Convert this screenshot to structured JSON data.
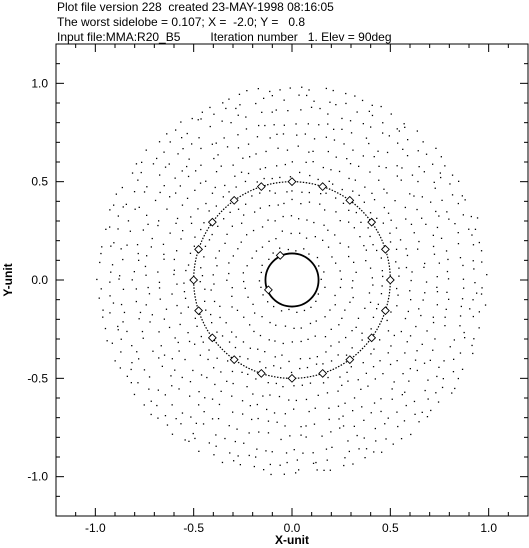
{
  "header": {
    "line1": "Plot file version 228  created 23-MAY-1998 08:16:05",
    "line2": "The worst sidelobe = 0.107; X =  -2.0; Y =   0.8",
    "line3": "Input file:MMA:R20_B5         Iteration number   1. Elev = 90deg"
  },
  "chart_data": {
    "type": "scatter",
    "xlabel": "X-unit",
    "ylabel": "Y-unit",
    "xlim": [
      -1.2,
      1.2
    ],
    "ylim": [
      -1.2,
      1.2
    ],
    "x_ticks": [
      -1.0,
      -0.5,
      0.0,
      0.5,
      1.0
    ],
    "x_tick_labels": [
      "-1.0",
      "-0.5",
      "0.0",
      "0.5",
      "1.0"
    ],
    "y_ticks": [
      -1.0,
      -0.5,
      0.0,
      0.5,
      1.0
    ],
    "y_tick_labels": [
      "-1.0",
      "-0.5",
      "0.0",
      "0.5",
      "1.0"
    ],
    "grid": false,
    "inner_circle": {
      "cx": 0.0,
      "cy": 0.0,
      "r": 0.135
    },
    "outer_ring": {
      "cx": 0.0,
      "cy": 0.0,
      "r": 0.5
    },
    "antennas": [
      {
        "x": 0.0,
        "y": 0.5
      },
      {
        "x": 0.156,
        "y": 0.475
      },
      {
        "x": 0.294,
        "y": 0.405
      },
      {
        "x": 0.405,
        "y": 0.294
      },
      {
        "x": 0.475,
        "y": 0.156
      },
      {
        "x": 0.5,
        "y": 0.0
      },
      {
        "x": 0.475,
        "y": -0.156
      },
      {
        "x": 0.405,
        "y": -0.294
      },
      {
        "x": 0.294,
        "y": -0.405
      },
      {
        "x": 0.156,
        "y": -0.475
      },
      {
        "x": 0.0,
        "y": -0.5
      },
      {
        "x": -0.156,
        "y": -0.475
      },
      {
        "x": -0.294,
        "y": -0.405
      },
      {
        "x": -0.405,
        "y": -0.294
      },
      {
        "x": -0.475,
        "y": -0.156
      },
      {
        "x": -0.5,
        "y": 0.0
      },
      {
        "x": -0.475,
        "y": 0.156
      },
      {
        "x": -0.405,
        "y": 0.294
      },
      {
        "x": -0.294,
        "y": 0.405
      },
      {
        "x": -0.156,
        "y": 0.475
      },
      {
        "x": -0.06,
        "y": 0.125
      },
      {
        "x": -0.12,
        "y": -0.05
      }
    ],
    "uv_samples": {
      "note_free": true,
      "ring_radii": [
        0.16,
        0.24,
        0.32,
        0.4,
        0.46,
        0.54,
        0.6,
        0.67,
        0.74,
        0.8,
        0.87,
        0.93,
        0.98
      ],
      "points_per_ring": [
        26,
        36,
        48,
        58,
        66,
        72,
        80,
        86,
        92,
        98,
        104,
        110,
        114
      ]
    }
  }
}
